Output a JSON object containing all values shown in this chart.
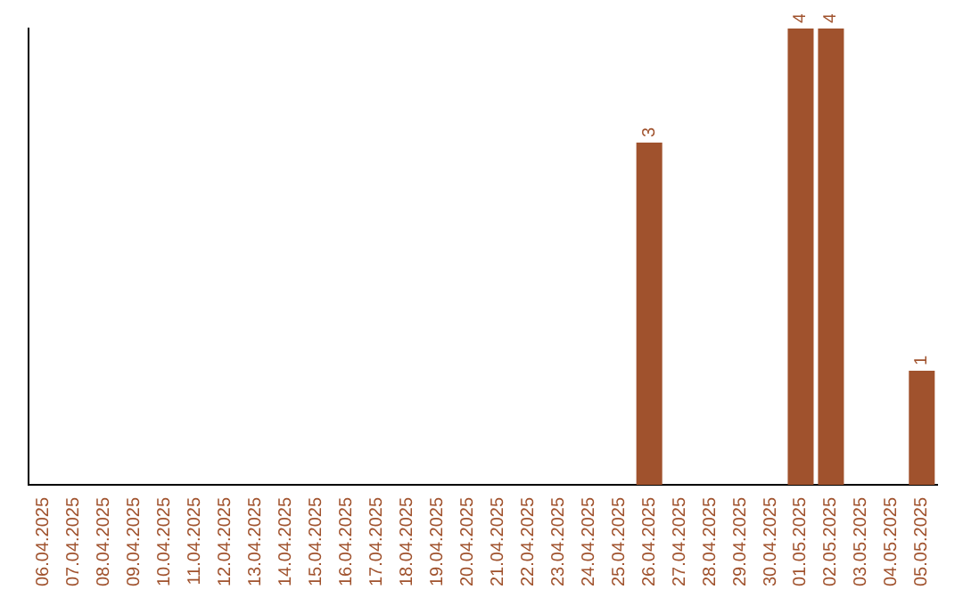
{
  "chart_data": {
    "type": "bar",
    "categories": [
      "06.04.2025",
      "07.04.2025",
      "08.04.2025",
      "09.04.2025",
      "10.04.2025",
      "11.04.2025",
      "12.04.2025",
      "13.04.2025",
      "14.04.2025",
      "15.04.2025",
      "16.04.2025",
      "17.04.2025",
      "18.04.2025",
      "19.04.2025",
      "20.04.2025",
      "21.04.2025",
      "22.04.2025",
      "23.04.2025",
      "24.04.2025",
      "25.04.2025",
      "26.04.2025",
      "27.04.2025",
      "28.04.2025",
      "29.04.2025",
      "30.04.2025",
      "01.05.2025",
      "02.05.2025",
      "03.05.2025",
      "04.05.2025",
      "05.05.2025"
    ],
    "values": [
      null,
      null,
      null,
      null,
      null,
      null,
      null,
      null,
      null,
      null,
      null,
      null,
      null,
      null,
      null,
      null,
      null,
      null,
      null,
      null,
      3,
      null,
      null,
      null,
      null,
      4,
      4,
      null,
      null,
      1
    ],
    "color": "#a0522d",
    "data_labels": true,
    "tick_labels": "x",
    "grid": false,
    "legend": false
  }
}
